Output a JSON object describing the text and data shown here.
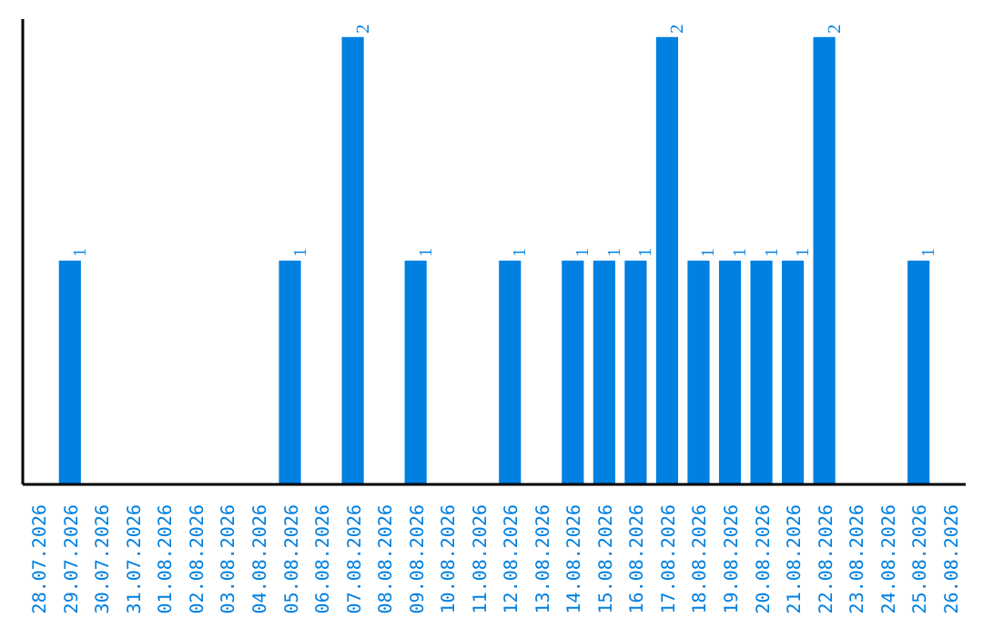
{
  "chart_data": {
    "type": "bar",
    "categories": [
      "28.07.2026",
      "29.07.2026",
      "30.07.2026",
      "31.07.2026",
      "01.08.2026",
      "02.08.2026",
      "03.08.2026",
      "04.08.2026",
      "05.08.2026",
      "06.08.2026",
      "07.08.2026",
      "08.08.2026",
      "09.08.2026",
      "10.08.2026",
      "11.08.2026",
      "12.08.2026",
      "13.08.2026",
      "14.08.2026",
      "15.08.2026",
      "16.08.2026",
      "17.08.2026",
      "18.08.2026",
      "19.08.2026",
      "20.08.2026",
      "21.08.2026",
      "22.08.2026",
      "23.08.2026",
      "24.08.2026",
      "25.08.2026",
      "26.08.2026"
    ],
    "values": [
      0,
      1,
      0,
      0,
      0,
      0,
      0,
      0,
      1,
      0,
      2,
      0,
      1,
      0,
      0,
      1,
      0,
      1,
      1,
      1,
      2,
      1,
      1,
      1,
      1,
      2,
      0,
      0,
      1,
      0
    ],
    "value_labels": [
      null,
      "1",
      null,
      null,
      null,
      null,
      null,
      null,
      "1",
      null,
      "2",
      null,
      "1",
      null,
      null,
      "1",
      null,
      "1",
      "1",
      "1",
      "2",
      "1",
      "1",
      "1",
      "1",
      "2",
      null,
      null,
      "1",
      null
    ],
    "color": "#0080e0",
    "ylim": [
      0,
      2.08
    ],
    "tick_labels": "x",
    "grid": false
  }
}
